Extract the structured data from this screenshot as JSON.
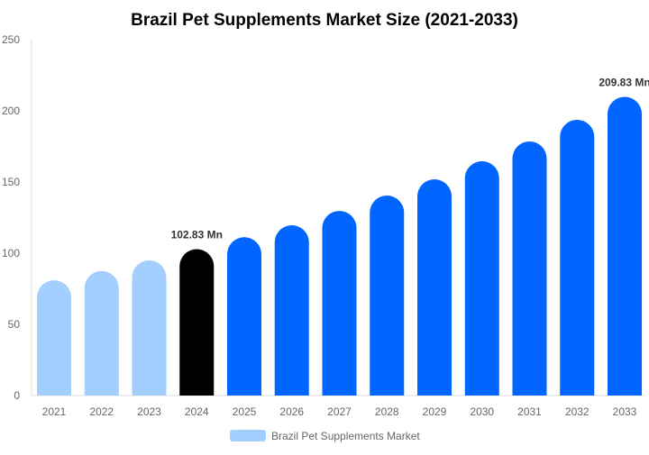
{
  "chart_data": {
    "type": "bar",
    "title": "Brazil Pet Supplements Market Size (2021-2033)",
    "xlabel": "",
    "ylabel": "",
    "ylim": [
      0,
      250
    ],
    "yticks": [
      0,
      50,
      100,
      150,
      200,
      250
    ],
    "grid": false,
    "legend_position": "bottom",
    "categories": [
      "2021",
      "2022",
      "2023",
      "2024",
      "2025",
      "2026",
      "2027",
      "2028",
      "2029",
      "2030",
      "2031",
      "2032",
      "2033"
    ],
    "series": [
      {
        "name": "Brazil Pet Supplements Market",
        "values": [
          81,
          87.5,
          94.9,
          102.83,
          111.2,
          119.6,
          129.7,
          140.5,
          151.9,
          164.6,
          178.5,
          193.7,
          209.83
        ],
        "colors": [
          "#a3cfff",
          "#a3cfff",
          "#a3cfff",
          "#000000",
          "#0066ff",
          "#0066ff",
          "#0066ff",
          "#0066ff",
          "#0066ff",
          "#0066ff",
          "#0066ff",
          "#0066ff",
          "#0066ff"
        ]
      }
    ],
    "data_labels": [
      {
        "category": "2024",
        "text": "102.83 Mn"
      },
      {
        "category": "2033",
        "text": "209.83 Mn"
      }
    ],
    "legend_color": "#a3cfff"
  }
}
